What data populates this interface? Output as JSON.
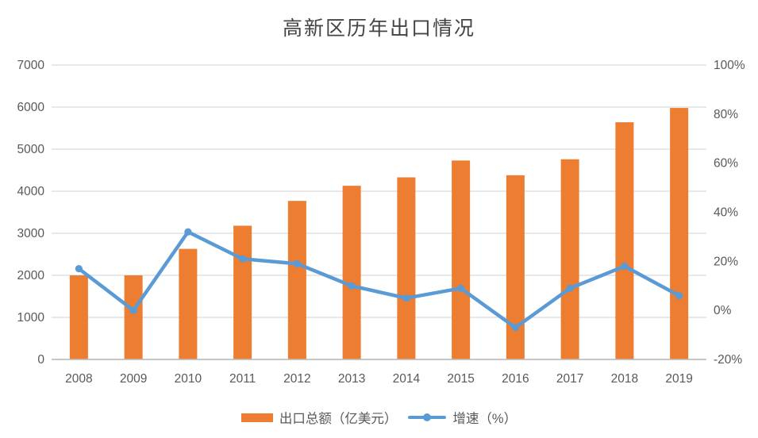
{
  "chart_data": {
    "type": "combo",
    "title": "高新区历年出口情况",
    "categories": [
      "2008",
      "2009",
      "2010",
      "2011",
      "2012",
      "2013",
      "2014",
      "2015",
      "2016",
      "2017",
      "2018",
      "2019"
    ],
    "series": [
      {
        "name": "出口总额（亿美元）",
        "type": "bar",
        "axis": "left",
        "color": "#ED7D31",
        "values": [
          2000,
          2000,
          2630,
          3180,
          3770,
          4130,
          4330,
          4730,
          4380,
          4760,
          5640,
          5980
        ]
      },
      {
        "name": "增速（%）",
        "type": "line",
        "axis": "right",
        "color": "#5B9BD5",
        "values": [
          17,
          0,
          32,
          21,
          19,
          10,
          5,
          9,
          -7,
          9,
          18,
          6
        ]
      }
    ],
    "left_axis": {
      "min": 0,
      "max": 7000,
      "step": 1000,
      "tick_labels": [
        "0",
        "1000",
        "2000",
        "3000",
        "4000",
        "5000",
        "6000",
        "7000"
      ]
    },
    "right_axis": {
      "min": -20,
      "max": 100,
      "step": 20,
      "tick_labels": [
        "-20%",
        "0%",
        "20%",
        "40%",
        "60%",
        "80%",
        "100%"
      ]
    },
    "grid": true,
    "legend_position": "bottom",
    "gridline_color": "#D9D9D9",
    "axis_line_color": "#BFBFBF",
    "text_color": "#595959",
    "title_color": "#444444",
    "background": "#FFFFFF"
  }
}
